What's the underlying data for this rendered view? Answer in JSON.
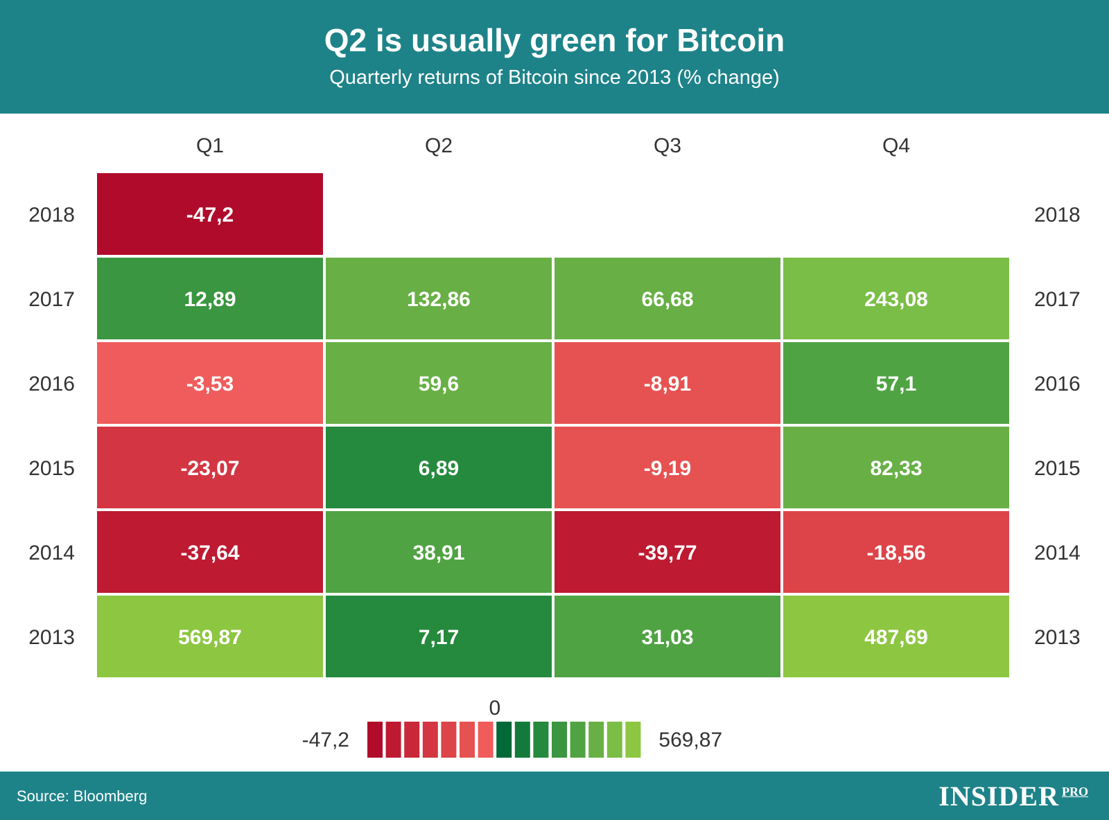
{
  "header": {
    "title": "Q2 is usually green for Bitcoin",
    "subtitle": "Quarterly returns of Bitcoin since 2013 (% change)"
  },
  "footer": {
    "source": "Source: Bloomberg",
    "logo_main": "INSIDER",
    "logo_sup": "PRO"
  },
  "colors": {
    "header_bg": "#1e8389",
    "negative_scale": [
      "#b00b2b",
      "#be1a32",
      "#c9283a",
      "#d33642",
      "#dd4449",
      "#e65251",
      "#f05c5c"
    ],
    "positive_scale": [
      "#016837",
      "#137a3b",
      "#258a3d",
      "#3a9640",
      "#50a343",
      "#68b045",
      "#7bbe47",
      "#8dc641"
    ]
  },
  "chart_data": {
    "type": "heatmap",
    "x_categories": [
      "Q1",
      "Q2",
      "Q3",
      "Q4"
    ],
    "y_categories": [
      "2018",
      "2017",
      "2016",
      "2015",
      "2014",
      "2013"
    ],
    "values": [
      [
        -47.2,
        null,
        null,
        null
      ],
      [
        12.89,
        132.86,
        66.68,
        243.08
      ],
      [
        -3.53,
        59.6,
        -8.91,
        57.1
      ],
      [
        -23.07,
        6.89,
        -9.19,
        82.33
      ],
      [
        -37.64,
        38.91,
        -39.77,
        -18.56
      ],
      [
        569.87,
        7.17,
        31.03,
        487.69
      ]
    ],
    "labels": [
      [
        "-47,2",
        "",
        "",
        ""
      ],
      [
        "12,89",
        "132,86",
        "66,68",
        "243,08"
      ],
      [
        "-3,53",
        "59,6",
        "-8,91",
        "57,1"
      ],
      [
        "-23,07",
        "6,89",
        "-9,19",
        "82,33"
      ],
      [
        "-37,64",
        "38,91",
        "-39,77",
        "-18,56"
      ],
      [
        "569,87",
        "7,17",
        "31,03",
        "487,69"
      ]
    ],
    "legend": {
      "min_label": "-47,2",
      "mid_label": "0",
      "max_label": "569,87",
      "min": -47.2,
      "max": 569.87
    }
  }
}
